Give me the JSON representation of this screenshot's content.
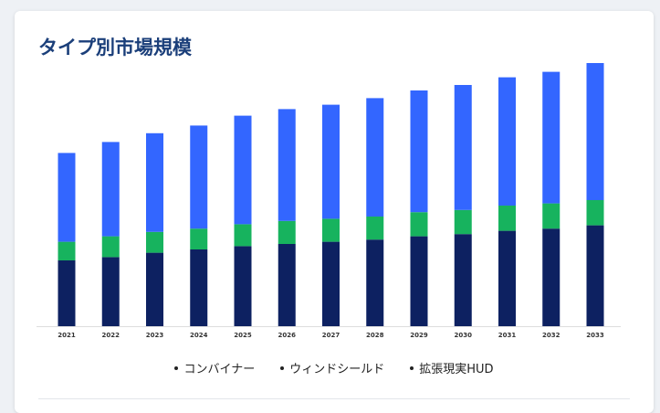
{
  "card": {
    "title": "タイプ別市場規模"
  },
  "legend": {
    "items": [
      "コンバイナー",
      "ウィンドシールド",
      "拡張現実HUD"
    ]
  },
  "colors": {
    "combiner": "#0d2161",
    "windshield": "#17b35e",
    "ar_hud": "#3366ff",
    "axis": "#dddddd"
  },
  "chart_data": {
    "type": "bar",
    "stacked": true,
    "title": "タイプ別市場規模",
    "xlabel": "",
    "ylabel": "",
    "grid": false,
    "legend_position": "bottom",
    "categories": [
      "2021",
      "2022",
      "2023",
      "2024",
      "2025",
      "2026",
      "2027",
      "2028",
      "2029",
      "2030",
      "2031",
      "2032",
      "2033"
    ],
    "series": [
      {
        "name": "コンバイナー",
        "values": [
          60,
          63,
          67,
          70,
          73,
          75,
          77,
          79,
          82,
          84,
          87,
          89,
          92
        ]
      },
      {
        "name": "ウィンドシールド",
        "values": [
          17,
          19,
          19,
          19,
          20,
          21,
          21,
          21,
          22,
          22,
          23,
          23,
          23
        ]
      },
      {
        "name": "拡張現実HUD",
        "values": [
          81,
          86,
          90,
          94,
          99,
          102,
          104,
          108,
          111,
          114,
          117,
          120,
          125
        ]
      }
    ],
    "ylim": [
      0,
      250
    ]
  }
}
